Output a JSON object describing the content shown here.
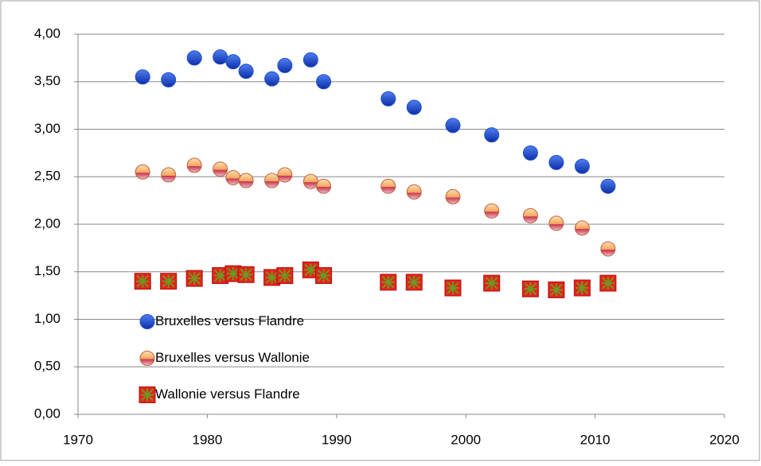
{
  "chart_data": {
    "type": "scatter",
    "x": [
      1975,
      1977,
      1979,
      1981,
      1982,
      1983,
      1985,
      1986,
      1988,
      1989,
      1994,
      1996,
      1999,
      2002,
      2005,
      2007,
      2009,
      2011
    ],
    "series": [
      {
        "name": "Bruxelles versus Flandre",
        "color": "#1f4fd1",
        "marker": "circle",
        "values": [
          3.55,
          3.52,
          3.75,
          3.76,
          3.71,
          3.61,
          3.53,
          3.67,
          3.73,
          3.5,
          3.32,
          3.23,
          3.04,
          2.94,
          2.75,
          2.65,
          2.61,
          2.4
        ]
      },
      {
        "name": "Bruxelles versus Wallonie",
        "color": "#f5a35c",
        "marker": "half-circle",
        "values": [
          2.55,
          2.52,
          2.62,
          2.58,
          2.49,
          2.46,
          2.46,
          2.52,
          2.45,
          2.4,
          2.4,
          2.34,
          2.29,
          2.14,
          2.09,
          2.01,
          1.96,
          1.74
        ]
      },
      {
        "name": "Wallonie versus Flandre",
        "color": "#e8231a",
        "marker": "square",
        "values": [
          1.4,
          1.4,
          1.43,
          1.46,
          1.48,
          1.47,
          1.44,
          1.46,
          1.52,
          1.46,
          1.39,
          1.39,
          1.33,
          1.38,
          1.32,
          1.31,
          1.33,
          1.38
        ]
      }
    ],
    "xlim": [
      1970,
      2020
    ],
    "xticks": [
      1970,
      1980,
      1990,
      2000,
      2010,
      2020
    ],
    "ylim": [
      0,
      4
    ],
    "yticks": [
      {
        "value": 0,
        "label": "0,00"
      },
      {
        "value": 0.5,
        "label": "0,50"
      },
      {
        "value": 1,
        "label": "1,00"
      },
      {
        "value": 1.5,
        "label": "1,50"
      },
      {
        "value": 2,
        "label": "2,00"
      },
      {
        "value": 2.5,
        "label": "2,50"
      },
      {
        "value": 3,
        "label": "3,00"
      },
      {
        "value": 3.5,
        "label": "3,50"
      },
      {
        "value": 4,
        "label": "4,00"
      }
    ],
    "grid": true,
    "legend": "lower-left"
  }
}
